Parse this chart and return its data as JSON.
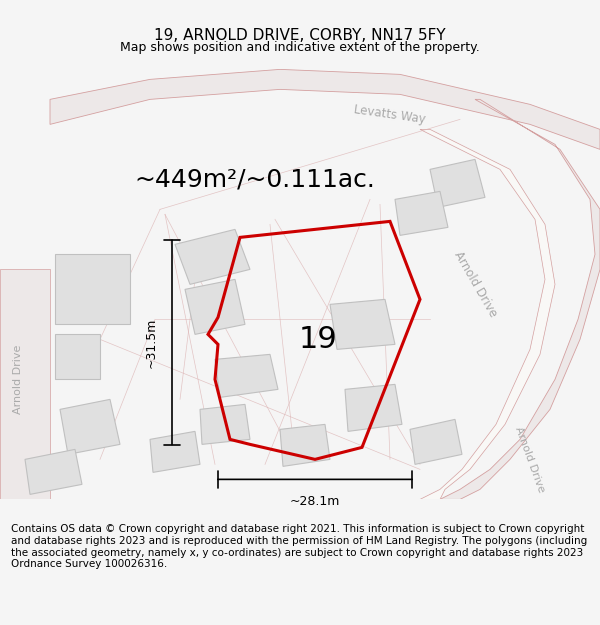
{
  "title": "19, ARNOLD DRIVE, CORBY, NN17 5FY",
  "subtitle": "Map shows position and indicative extent of the property.",
  "area_text": "~449m²/~0.111ac.",
  "width_label": "~28.1m",
  "height_label": "~31.5m",
  "property_number": "19",
  "copyright_text": "Contains OS data © Crown copyright and database right 2021. This information is subject to Crown copyright and database rights 2023 and is reproduced with the permission of HM Land Registry. The polygons (including the associated geometry, namely x, y co-ordinates) are subject to Crown copyright and database rights 2023 Ordnance Survey 100026316.",
  "background_color": "#f5f5f5",
  "map_background": "#f9f8f6",
  "property_polygon_color": "#cc0000",
  "road_line_color": "#d4a0a0",
  "building_fill": "#e0e0e0",
  "building_edge": "#c0c0c0",
  "street_label_color": "#aaaaaa",
  "title_fontsize": 11,
  "subtitle_fontsize": 9,
  "area_fontsize": 18,
  "copyright_fontsize": 7.5
}
